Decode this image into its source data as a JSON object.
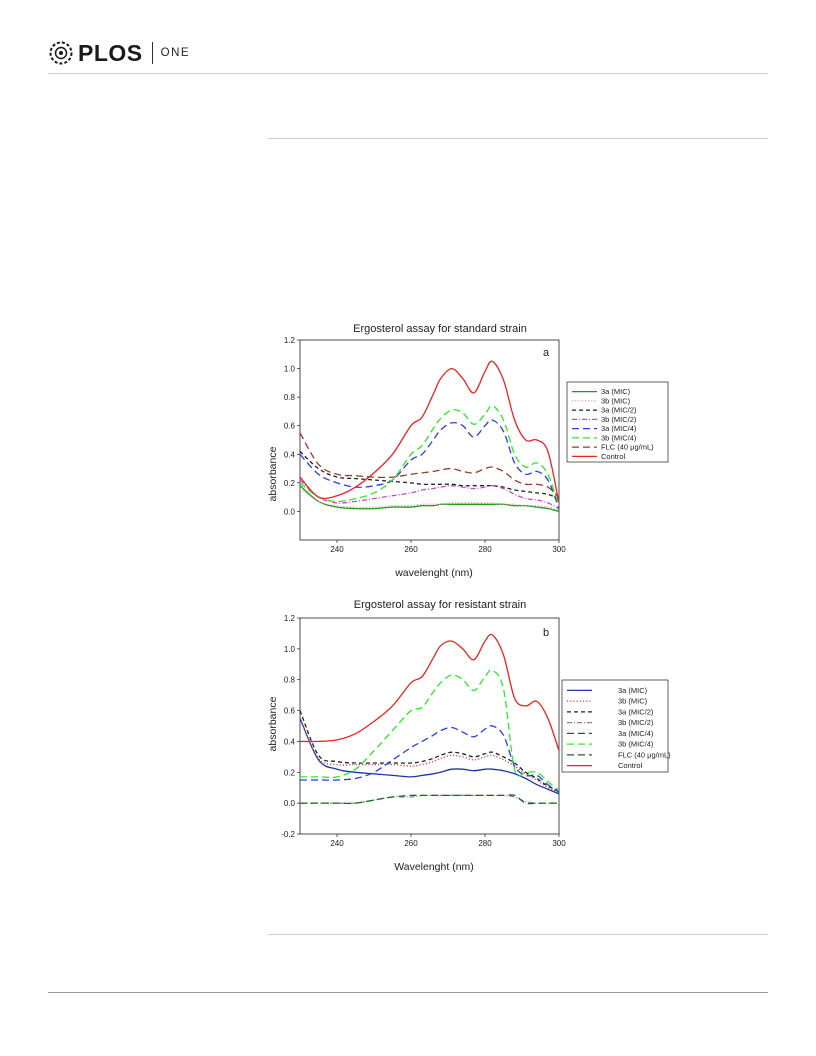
{
  "header": {
    "brand": "PLOS",
    "journal": "ONE"
  },
  "colors": {
    "3a (MIC)": "#1f9a1f",
    "3b (MIC)": "#e79a9a",
    "3a (MIC/2)": "#222222",
    "3b (MIC/2)": "#c04fc0",
    "3a (MIC/4)": "#2b3fd6",
    "3b (MIC/4)": "#2ee82e",
    "FLC (40 μg/mL)": "#9a3a2a",
    "Control": "#ee2222",
    "b_3a (MIC)": "#2233aa",
    "b_3b (MIC)": "#cc4444",
    "b_3a (MIC/2)": "#222222",
    "b_3b (MIC/2)": "#888888",
    "b_3a (MIC/4)": "#2b3fd6",
    "b_3b (MIC/4)": "#2ee82e",
    "b_FLC (40 μg/mL)": "#1a6a1a",
    "b_Control": "#ee2222"
  },
  "chart_data": [
    {
      "type": "line",
      "title": "Ergosterol assay for standard strain",
      "panel": "a",
      "xlabel": "wavelenght (nm)",
      "ylabel": "absorbance",
      "xlim": [
        230,
        300
      ],
      "ylim": [
        -0.2,
        1.2
      ],
      "xticks": [
        240,
        260,
        280,
        300
      ],
      "yticks": [
        0.0,
        0.2,
        0.4,
        0.6,
        0.8,
        1.0,
        1.2
      ],
      "legend_position": "right",
      "x": [
        230,
        235,
        240,
        245,
        250,
        255,
        260,
        263,
        266,
        268,
        271,
        274,
        277,
        280,
        282,
        285,
        288,
        291,
        294,
        297,
        300
      ],
      "series": [
        {
          "name": "3a (MIC)",
          "style": "solid",
          "values": [
            0.18,
            0.07,
            0.03,
            0.02,
            0.02,
            0.03,
            0.03,
            0.04,
            0.04,
            0.05,
            0.05,
            0.05,
            0.05,
            0.05,
            0.05,
            0.05,
            0.04,
            0.04,
            0.03,
            0.02,
            0.0
          ]
        },
        {
          "name": "3b (MIC)",
          "style": "dotted",
          "values": [
            0.16,
            0.07,
            0.04,
            0.03,
            0.03,
            0.04,
            0.04,
            0.05,
            0.05,
            0.05,
            0.06,
            0.06,
            0.06,
            0.06,
            0.06,
            0.05,
            0.05,
            0.04,
            0.04,
            0.03,
            0.01
          ]
        },
        {
          "name": "3a (MIC/2)",
          "style": "dash",
          "values": [
            0.42,
            0.3,
            0.24,
            0.23,
            0.22,
            0.21,
            0.2,
            0.19,
            0.19,
            0.19,
            0.19,
            0.18,
            0.18,
            0.18,
            0.18,
            0.17,
            0.15,
            0.14,
            0.13,
            0.12,
            0.09
          ]
        },
        {
          "name": "3b (MIC/2)",
          "style": "dashdot",
          "values": [
            0.22,
            0.1,
            0.06,
            0.07,
            0.09,
            0.11,
            0.13,
            0.15,
            0.16,
            0.17,
            0.18,
            0.17,
            0.16,
            0.17,
            0.18,
            0.16,
            0.12,
            0.09,
            0.08,
            0.06,
            0.02
          ]
        },
        {
          "name": "3a (MIC/4)",
          "style": "longdash",
          "values": [
            0.4,
            0.26,
            0.2,
            0.17,
            0.18,
            0.22,
            0.36,
            0.4,
            0.5,
            0.57,
            0.62,
            0.6,
            0.52,
            0.6,
            0.64,
            0.56,
            0.34,
            0.26,
            0.28,
            0.22,
            0.02
          ]
        },
        {
          "name": "3b (MIC/4)",
          "style": "longdash",
          "values": [
            0.2,
            0.1,
            0.07,
            0.09,
            0.13,
            0.22,
            0.4,
            0.46,
            0.58,
            0.65,
            0.71,
            0.69,
            0.61,
            0.68,
            0.74,
            0.64,
            0.4,
            0.31,
            0.34,
            0.26,
            0.04
          ]
        },
        {
          "name": "FLC (40 μg/mL)",
          "style": "longdash",
          "values": [
            0.55,
            0.33,
            0.26,
            0.25,
            0.24,
            0.24,
            0.26,
            0.27,
            0.28,
            0.29,
            0.3,
            0.28,
            0.27,
            0.3,
            0.31,
            0.28,
            0.22,
            0.19,
            0.19,
            0.17,
            0.1
          ]
        },
        {
          "name": "Control",
          "style": "solid",
          "values": [
            0.24,
            0.1,
            0.11,
            0.17,
            0.27,
            0.4,
            0.6,
            0.66,
            0.82,
            0.93,
            1.0,
            0.93,
            0.83,
            0.98,
            1.05,
            0.92,
            0.64,
            0.5,
            0.5,
            0.42,
            0.06
          ]
        }
      ]
    },
    {
      "type": "line",
      "title": "Ergosterol assay for resistant strain",
      "panel": "b",
      "xlabel": "Wavelenght (nm)",
      "ylabel": "absorbance",
      "xlim": [
        230,
        300
      ],
      "ylim": [
        -0.2,
        1.2
      ],
      "xticks": [
        240,
        260,
        280,
        300
      ],
      "yticks": [
        -0.2,
        0.0,
        0.2,
        0.4,
        0.6,
        0.8,
        1.0,
        1.2
      ],
      "legend_position": "right",
      "x": [
        230,
        235,
        240,
        245,
        250,
        255,
        260,
        263,
        266,
        268,
        271,
        274,
        277,
        280,
        282,
        285,
        288,
        291,
        294,
        297,
        300
      ],
      "series": [
        {
          "name": "3a (MIC)",
          "key": "b_3a (MIC)",
          "style": "solid",
          "values": [
            0.55,
            0.28,
            0.22,
            0.2,
            0.19,
            0.18,
            0.17,
            0.18,
            0.19,
            0.2,
            0.22,
            0.22,
            0.21,
            0.22,
            0.22,
            0.21,
            0.19,
            0.16,
            0.12,
            0.09,
            0.06
          ]
        },
        {
          "name": "3b (MIC)",
          "key": "b_3b (MIC)",
          "style": "dotted",
          "values": [
            0.55,
            0.29,
            0.25,
            0.25,
            0.25,
            0.25,
            0.24,
            0.25,
            0.27,
            0.29,
            0.31,
            0.3,
            0.28,
            0.3,
            0.31,
            0.28,
            0.24,
            0.19,
            0.15,
            0.1,
            0.07
          ]
        },
        {
          "name": "3a (MIC/2)",
          "key": "b_3a (MIC/2)",
          "style": "dash",
          "values": [
            0.6,
            0.31,
            0.27,
            0.26,
            0.26,
            0.26,
            0.26,
            0.27,
            0.29,
            0.31,
            0.33,
            0.32,
            0.3,
            0.32,
            0.33,
            0.3,
            0.26,
            0.2,
            0.16,
            0.11,
            0.08
          ]
        },
        {
          "name": "3b (MIC/2)",
          "key": "b_3b (MIC/2)",
          "style": "dashdot",
          "values": [
            0.0,
            0.0,
            0.0,
            0.0,
            0.02,
            0.04,
            0.04,
            0.05,
            0.05,
            0.05,
            0.05,
            0.05,
            0.05,
            0.05,
            0.05,
            0.05,
            0.04,
            0.01,
            0.0,
            0.0,
            0.0
          ]
        },
        {
          "name": "3a (MIC/4)",
          "key": "b_3a (MIC/4)",
          "style": "longdash",
          "values": [
            0.15,
            0.15,
            0.15,
            0.16,
            0.2,
            0.28,
            0.36,
            0.4,
            0.44,
            0.47,
            0.49,
            0.46,
            0.43,
            0.48,
            0.5,
            0.44,
            0.24,
            0.18,
            0.18,
            0.12,
            0.07
          ]
        },
        {
          "name": "3b (MIC/4)",
          "key": "b_3b (MIC/4)",
          "style": "longdash",
          "values": [
            0.17,
            0.17,
            0.17,
            0.22,
            0.34,
            0.47,
            0.6,
            0.62,
            0.72,
            0.78,
            0.83,
            0.8,
            0.73,
            0.82,
            0.86,
            0.74,
            0.22,
            0.2,
            0.2,
            0.14,
            0.08
          ]
        },
        {
          "name": "FLC (40 μg/mL)",
          "key": "b_FLC (40 μg/mL)",
          "style": "longdash",
          "values": [
            0.0,
            0.0,
            0.0,
            0.0,
            0.02,
            0.04,
            0.05,
            0.05,
            0.05,
            0.05,
            0.05,
            0.05,
            0.05,
            0.05,
            0.05,
            0.05,
            0.05,
            0.0,
            0.0,
            0.0,
            0.0
          ]
        },
        {
          "name": "Control",
          "key": "b_Control",
          "style": "solid",
          "values": [
            0.4,
            0.4,
            0.41,
            0.45,
            0.53,
            0.63,
            0.78,
            0.82,
            0.94,
            1.02,
            1.05,
            1.0,
            0.93,
            1.05,
            1.09,
            0.96,
            0.68,
            0.63,
            0.66,
            0.55,
            0.34
          ]
        }
      ]
    }
  ]
}
